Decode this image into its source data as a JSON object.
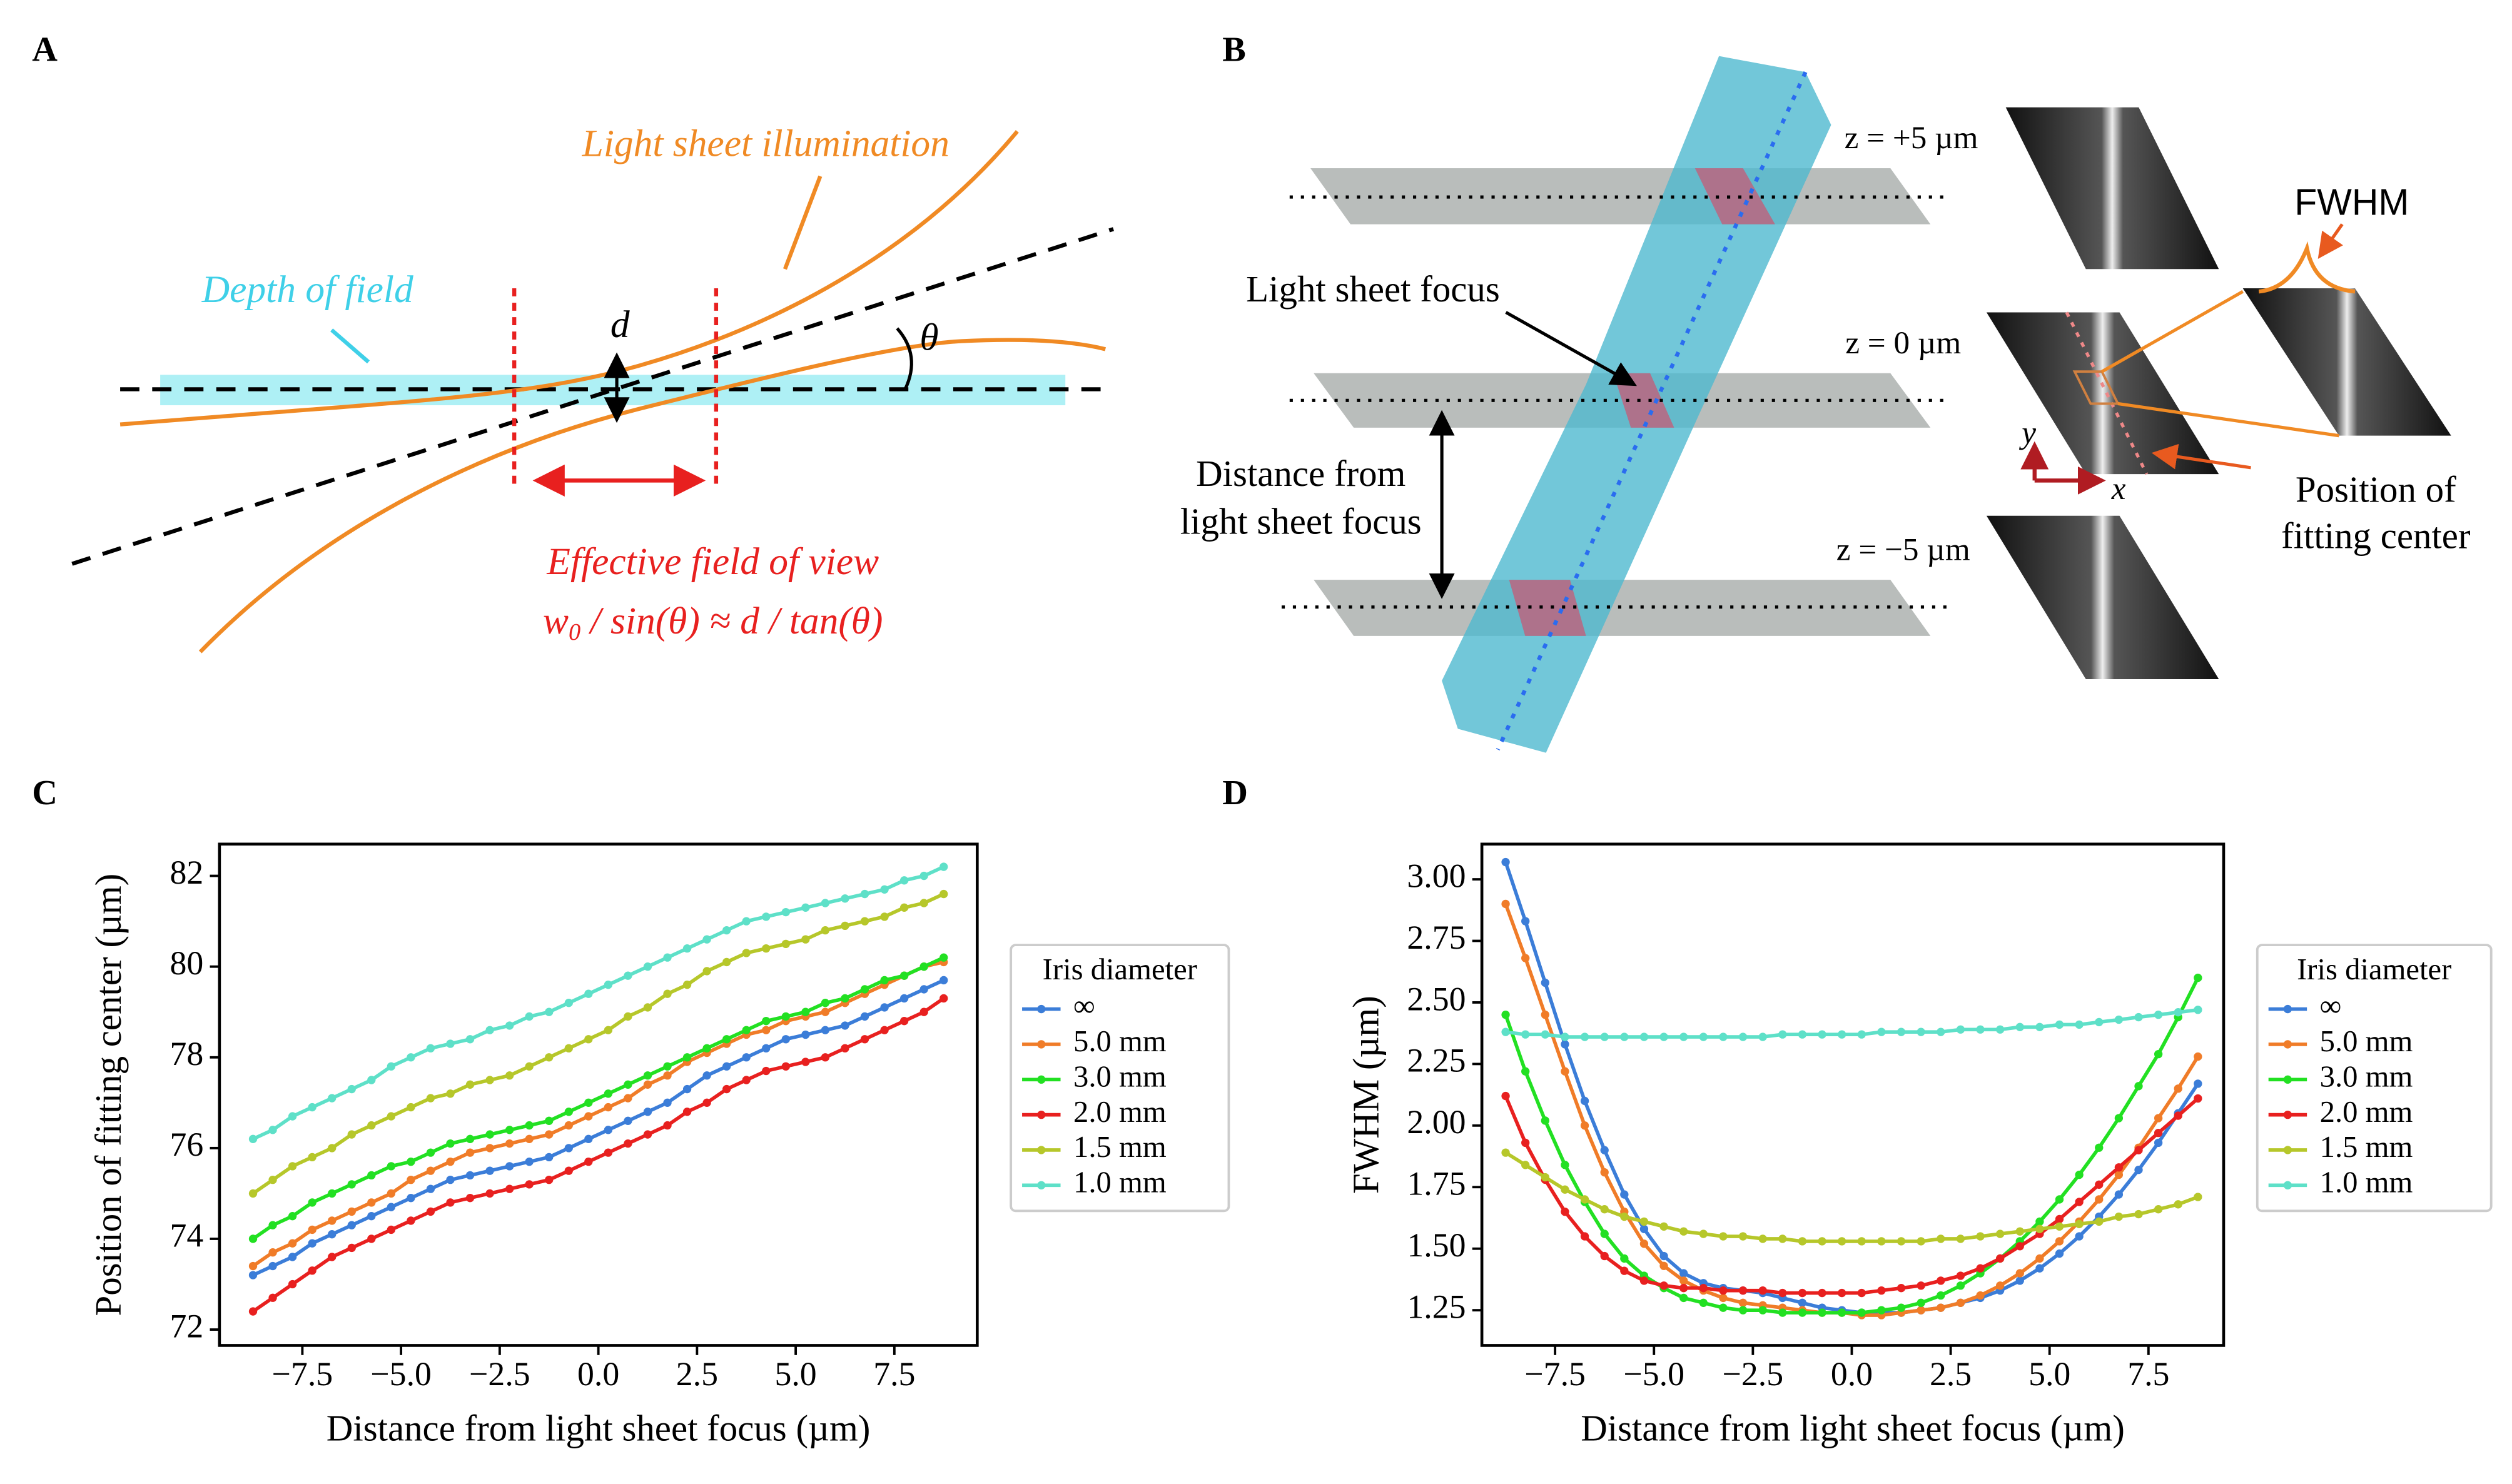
{
  "panel_labels": [
    "A",
    "B",
    "C",
    "D"
  ],
  "panel_a": {
    "light_sheet": "Light sheet illumination",
    "depth_of_field": "Depth of field",
    "d": "d",
    "theta": "θ",
    "fov_title": "Effective field of view",
    "fov_formula": [
      "w",
      "0",
      " / sin(θ) ≈ d / tan(θ)"
    ]
  },
  "panel_b": {
    "z_plus": "z = +5 µm",
    "z_zero": "z = 0 µm",
    "z_minus": "z = −5 µm",
    "focus": "Light sheet focus",
    "distance": [
      "Distance from",
      "light sheet focus"
    ],
    "fwhm": "FWHM",
    "fit_center": [
      "Position of",
      "fitting center"
    ],
    "axis_y": "y",
    "axis_x": "x"
  },
  "chart_data": [
    {
      "type": "line",
      "xlabel": "Distance from light sheet focus (µm)",
      "ylabel": "Position of fitting center (µm)",
      "xlim": [
        -9.6,
        9.6
      ],
      "ylim": [
        71.65,
        82.7
      ],
      "xticks": [
        {
          "value": -7.5,
          "label": "−7.5"
        },
        {
          "value": -5,
          "label": "−5.0"
        },
        {
          "value": -2.5,
          "label": "−2.5"
        },
        {
          "value": 0,
          "label": "0.0"
        },
        2.5,
        {
          "value": 5,
          "label": "5.0"
        },
        7.5
      ],
      "yticks": [
        72,
        74,
        76,
        78,
        80,
        82
      ],
      "legend": "right",
      "legend_title": "Iris diameter",
      "x": [
        -8.75,
        -8.25,
        -7.75,
        -7.25,
        -6.75,
        -6.25,
        -5.75,
        -5.25,
        -4.75,
        -4.25,
        -3.75,
        -3.25,
        -2.75,
        -2.25,
        -1.75,
        -1.25,
        -0.75,
        -0.25,
        0.25,
        0.75,
        1.25,
        1.75,
        2.25,
        2.75,
        3.25,
        3.75,
        4.25,
        4.75,
        5.25,
        5.75,
        6.25,
        6.75,
        7.25,
        7.75,
        8.25,
        8.75
      ],
      "series": [
        {
          "name": "∞",
          "color": "#3b7dd8",
          "values": [
            73.2,
            73.4,
            73.6,
            73.9,
            74.1,
            74.3,
            74.5,
            74.7,
            74.9,
            75.1,
            75.3,
            75.4,
            75.5,
            75.6,
            75.7,
            75.8,
            76.0,
            76.2,
            76.4,
            76.6,
            76.8,
            77.0,
            77.3,
            77.6,
            77.8,
            78.0,
            78.2,
            78.4,
            78.5,
            78.6,
            78.7,
            78.9,
            79.1,
            79.3,
            79.5,
            79.7
          ]
        },
        {
          "name": "5.0 mm",
          "color": "#f07c28",
          "values": [
            73.4,
            73.7,
            73.9,
            74.2,
            74.4,
            74.6,
            74.8,
            75.0,
            75.3,
            75.5,
            75.7,
            75.9,
            76.0,
            76.1,
            76.2,
            76.3,
            76.5,
            76.7,
            76.9,
            77.1,
            77.4,
            77.6,
            77.9,
            78.1,
            78.3,
            78.5,
            78.6,
            78.8,
            78.9,
            79.0,
            79.2,
            79.4,
            79.6,
            79.8,
            80.0,
            80.1
          ]
        },
        {
          "name": "3.0 mm",
          "color": "#22e022",
          "values": [
            74.0,
            74.3,
            74.5,
            74.8,
            75.0,
            75.2,
            75.4,
            75.6,
            75.7,
            75.9,
            76.1,
            76.2,
            76.3,
            76.4,
            76.5,
            76.6,
            76.8,
            77.0,
            77.2,
            77.4,
            77.6,
            77.8,
            78.0,
            78.2,
            78.4,
            78.6,
            78.8,
            78.9,
            79.0,
            79.2,
            79.3,
            79.5,
            79.7,
            79.8,
            80.0,
            80.2
          ]
        },
        {
          "name": "2.0 mm",
          "color": "#e8201f",
          "values": [
            72.4,
            72.7,
            73.0,
            73.3,
            73.6,
            73.8,
            74.0,
            74.2,
            74.4,
            74.6,
            74.8,
            74.9,
            75.0,
            75.1,
            75.2,
            75.3,
            75.5,
            75.7,
            75.9,
            76.1,
            76.3,
            76.5,
            76.8,
            77.0,
            77.3,
            77.5,
            77.7,
            77.8,
            77.9,
            78.0,
            78.2,
            78.4,
            78.6,
            78.8,
            79.0,
            79.3
          ]
        },
        {
          "name": "1.5 mm",
          "color": "#b6c72a",
          "values": [
            75.0,
            75.3,
            75.6,
            75.8,
            76.0,
            76.3,
            76.5,
            76.7,
            76.9,
            77.1,
            77.2,
            77.4,
            77.5,
            77.6,
            77.8,
            78.0,
            78.2,
            78.4,
            78.6,
            78.9,
            79.1,
            79.4,
            79.6,
            79.9,
            80.1,
            80.3,
            80.4,
            80.5,
            80.6,
            80.8,
            80.9,
            81.0,
            81.1,
            81.3,
            81.4,
            81.6
          ]
        },
        {
          "name": "1.0 mm",
          "color": "#5ee0c8",
          "values": [
            76.2,
            76.4,
            76.7,
            76.9,
            77.1,
            77.3,
            77.5,
            77.8,
            78.0,
            78.2,
            78.3,
            78.4,
            78.6,
            78.7,
            78.9,
            79.0,
            79.2,
            79.4,
            79.6,
            79.8,
            80.0,
            80.2,
            80.4,
            80.6,
            80.8,
            81.0,
            81.1,
            81.2,
            81.3,
            81.4,
            81.5,
            81.6,
            81.7,
            81.9,
            82.0,
            82.2
          ]
        }
      ]
    },
    {
      "type": "line",
      "xlabel": "Distance from light sheet focus (µm)",
      "ylabel": "FWHM (µm)",
      "xlim": [
        -9.35,
        9.4
      ],
      "ylim": [
        1.107,
        3.143
      ],
      "xticks": [
        {
          "value": -7.5,
          "label": "−7.5"
        },
        {
          "value": -5,
          "label": "−5.0"
        },
        {
          "value": -2.5,
          "label": "−2.5"
        },
        {
          "value": 0,
          "label": "0.0"
        },
        2.5,
        {
          "value": 5,
          "label": "5.0"
        },
        7.5
      ],
      "yticks": [
        1.25,
        {
          "value": 1.5,
          "label": "1.50"
        },
        1.75,
        {
          "value": 2,
          "label": "2.00"
        },
        2.25,
        {
          "value": 2.5,
          "label": "2.50"
        },
        2.75,
        {
          "value": 3,
          "label": "3.00"
        }
      ],
      "legend": "right",
      "legend_title": "Iris diameter",
      "x": [
        -8.75,
        -8.25,
        -7.75,
        -7.25,
        -6.75,
        -6.25,
        -5.75,
        -5.25,
        -4.75,
        -4.25,
        -3.75,
        -3.25,
        -2.75,
        -2.25,
        -1.75,
        -1.25,
        -0.75,
        -0.25,
        0.25,
        0.75,
        1.25,
        1.75,
        2.25,
        2.75,
        3.25,
        3.75,
        4.25,
        4.75,
        5.25,
        5.75,
        6.25,
        6.75,
        7.25,
        7.75,
        8.25,
        8.75
      ],
      "series": [
        {
          "name": "∞",
          "color": "#3b7dd8",
          "values": [
            3.07,
            2.83,
            2.58,
            2.33,
            2.1,
            1.9,
            1.72,
            1.58,
            1.47,
            1.4,
            1.36,
            1.34,
            1.33,
            1.32,
            1.3,
            1.28,
            1.26,
            1.25,
            1.24,
            1.24,
            1.24,
            1.25,
            1.26,
            1.28,
            1.3,
            1.33,
            1.37,
            1.42,
            1.48,
            1.55,
            1.63,
            1.72,
            1.82,
            1.93,
            2.05,
            2.17
          ]
        },
        {
          "name": "5.0 mm",
          "color": "#f07c28",
          "values": [
            2.9,
            2.68,
            2.45,
            2.22,
            2.0,
            1.81,
            1.65,
            1.52,
            1.43,
            1.37,
            1.33,
            1.3,
            1.28,
            1.27,
            1.26,
            1.25,
            1.24,
            1.24,
            1.23,
            1.23,
            1.24,
            1.25,
            1.26,
            1.28,
            1.31,
            1.35,
            1.4,
            1.46,
            1.53,
            1.61,
            1.7,
            1.8,
            1.91,
            2.03,
            2.15,
            2.28
          ]
        },
        {
          "name": "3.0 mm",
          "color": "#22e022",
          "values": [
            2.45,
            2.22,
            2.02,
            1.84,
            1.69,
            1.56,
            1.46,
            1.39,
            1.34,
            1.3,
            1.28,
            1.26,
            1.25,
            1.25,
            1.24,
            1.24,
            1.24,
            1.24,
            1.24,
            1.25,
            1.26,
            1.28,
            1.31,
            1.35,
            1.4,
            1.46,
            1.53,
            1.61,
            1.7,
            1.8,
            1.91,
            2.03,
            2.16,
            2.29,
            2.44,
            2.6
          ]
        },
        {
          "name": "2.0 mm",
          "color": "#e8201f",
          "values": [
            2.12,
            1.93,
            1.78,
            1.65,
            1.55,
            1.47,
            1.41,
            1.37,
            1.35,
            1.34,
            1.34,
            1.33,
            1.33,
            1.33,
            1.32,
            1.32,
            1.32,
            1.32,
            1.32,
            1.33,
            1.34,
            1.35,
            1.37,
            1.39,
            1.42,
            1.46,
            1.51,
            1.56,
            1.62,
            1.69,
            1.76,
            1.83,
            1.9,
            1.97,
            2.04,
            2.11
          ]
        },
        {
          "name": "1.5 mm",
          "color": "#b6c72a",
          "values": [
            1.89,
            1.84,
            1.79,
            1.74,
            1.7,
            1.66,
            1.63,
            1.61,
            1.59,
            1.57,
            1.56,
            1.55,
            1.55,
            1.54,
            1.54,
            1.53,
            1.53,
            1.53,
            1.53,
            1.53,
            1.53,
            1.53,
            1.54,
            1.54,
            1.55,
            1.56,
            1.57,
            1.58,
            1.59,
            1.6,
            1.61,
            1.63,
            1.64,
            1.66,
            1.68,
            1.71
          ]
        },
        {
          "name": "1.0 mm",
          "color": "#5ee0c8",
          "values": [
            2.38,
            2.37,
            2.37,
            2.36,
            2.36,
            2.36,
            2.36,
            2.36,
            2.36,
            2.36,
            2.36,
            2.36,
            2.36,
            2.36,
            2.37,
            2.37,
            2.37,
            2.37,
            2.37,
            2.38,
            2.38,
            2.38,
            2.38,
            2.39,
            2.39,
            2.39,
            2.4,
            2.4,
            2.41,
            2.41,
            2.42,
            2.43,
            2.44,
            2.45,
            2.46,
            2.47
          ]
        }
      ]
    }
  ]
}
